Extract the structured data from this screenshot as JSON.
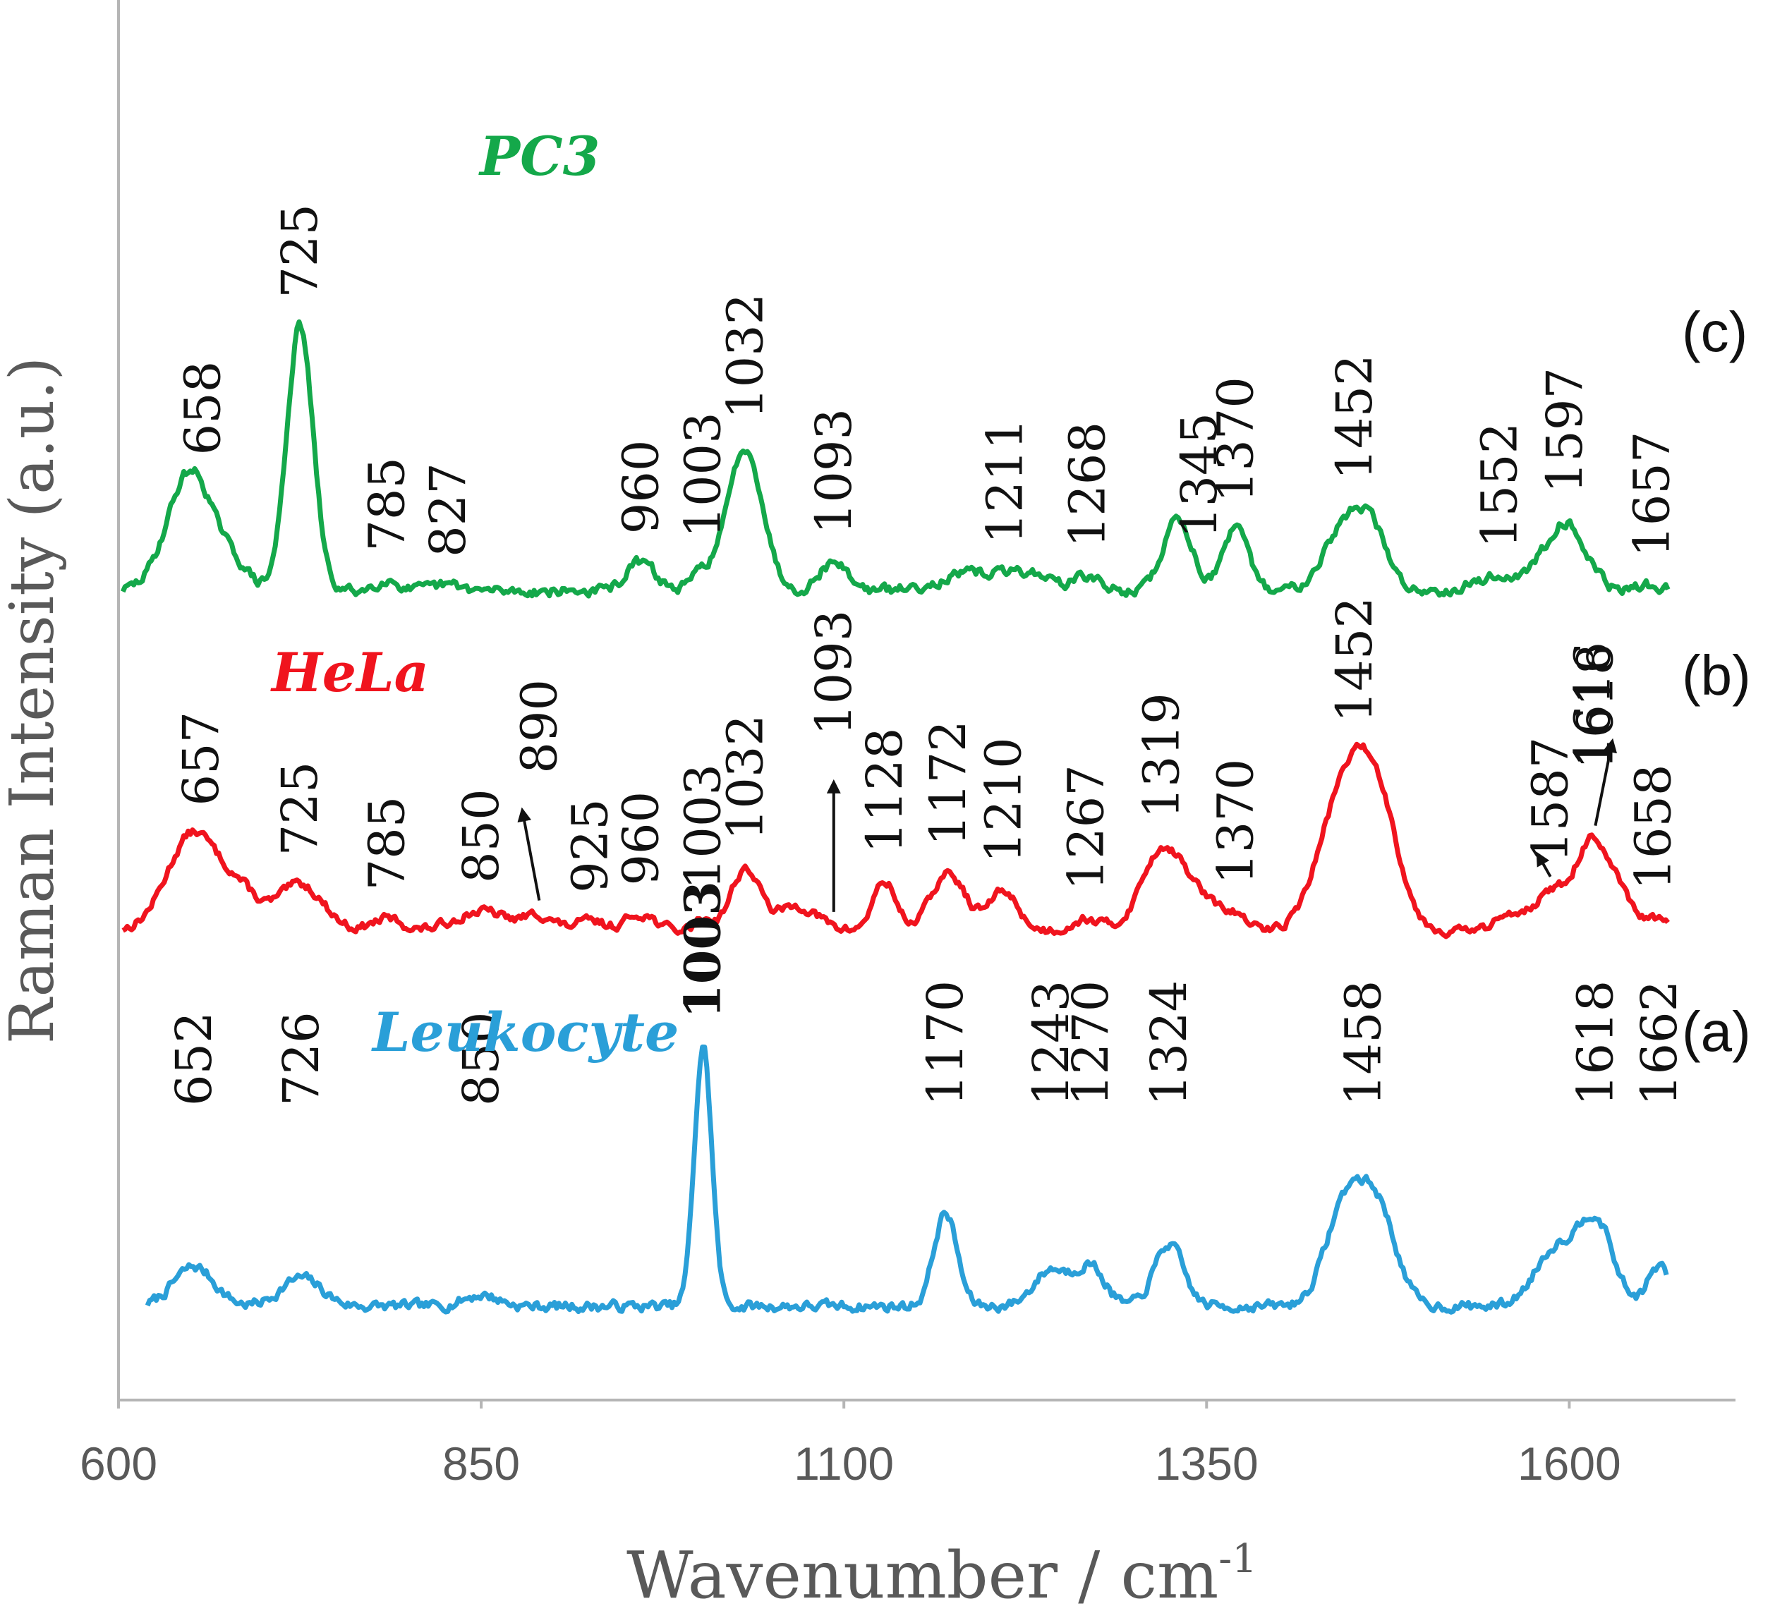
{
  "chart_data": {
    "type": "line",
    "title": "",
    "xlabel": "Wavenumber / cm",
    "xlabel_sup": "-1",
    "ylabel": "Raman Intensity (a.u.)",
    "xlim": [
      600,
      1700
    ],
    "xticks": [
      600,
      850,
      1100,
      1350,
      1600
    ],
    "series": [
      {
        "name": "Leukocyte",
        "tag": "(a)",
        "color": "#2A9FD8",
        "peaks": [
          {
            "x": 652,
            "h": 0.14,
            "w": 14
          },
          {
            "x": 726,
            "h": 0.1,
            "w": 14
          },
          {
            "x": 850,
            "h": 0.04,
            "w": 12
          },
          {
            "x": 1003,
            "h": 0.92,
            "w": 6
          },
          {
            "x": 1170,
            "h": 0.33,
            "w": 8
          },
          {
            "x": 1243,
            "h": 0.13,
            "w": 12
          },
          {
            "x": 1270,
            "h": 0.14,
            "w": 10
          },
          {
            "x": 1324,
            "h": 0.22,
            "w": 10
          },
          {
            "x": 1447,
            "h": 0.38,
            "w": 14
          },
          {
            "x": 1470,
            "h": 0.28,
            "w": 12
          },
          {
            "x": 1590,
            "h": 0.2,
            "w": 14
          },
          {
            "x": 1618,
            "h": 0.3,
            "w": 12
          },
          {
            "x": 1662,
            "h": 0.14,
            "w": 8
          }
        ],
        "labels": [
          {
            "text": "652",
            "x": 652
          },
          {
            "text": "726",
            "x": 726
          },
          {
            "text": "850",
            "x": 850
          },
          {
            "text": "1003",
            "x": 1003,
            "bold": true
          },
          {
            "text": "1170",
            "x": 1170
          },
          {
            "text": "1243",
            "x": 1243
          },
          {
            "text": "1270",
            "x": 1270
          },
          {
            "text": "1324",
            "x": 1324
          },
          {
            "text": "1458",
            "x": 1458
          },
          {
            "text": "1618",
            "x": 1618
          },
          {
            "text": "1662",
            "x": 1662
          }
        ]
      },
      {
        "name": "HeLa",
        "tag": "(b)",
        "color": "#F0141E",
        "peaks": [
          {
            "x": 652,
            "h": 0.4,
            "w": 18
          },
          {
            "x": 685,
            "h": 0.12,
            "w": 12
          },
          {
            "x": 725,
            "h": 0.19,
            "w": 16
          },
          {
            "x": 785,
            "h": 0.05,
            "w": 10
          },
          {
            "x": 850,
            "h": 0.08,
            "w": 18
          },
          {
            "x": 890,
            "h": 0.06,
            "w": 10
          },
          {
            "x": 925,
            "h": 0.04,
            "w": 10
          },
          {
            "x": 960,
            "h": 0.07,
            "w": 10
          },
          {
            "x": 1003,
            "h": 0.05,
            "w": 6
          },
          {
            "x": 1032,
            "h": 0.25,
            "w": 10
          },
          {
            "x": 1068,
            "h": 0.1,
            "w": 14
          },
          {
            "x": 1128,
            "h": 0.2,
            "w": 8
          },
          {
            "x": 1172,
            "h": 0.23,
            "w": 12
          },
          {
            "x": 1210,
            "h": 0.16,
            "w": 10
          },
          {
            "x": 1267,
            "h": 0.05,
            "w": 10
          },
          {
            "x": 1319,
            "h": 0.32,
            "w": 14
          },
          {
            "x": 1345,
            "h": 0.12,
            "w": 14
          },
          {
            "x": 1370,
            "h": 0.05,
            "w": 8
          },
          {
            "x": 1447,
            "h": 0.6,
            "w": 18
          },
          {
            "x": 1470,
            "h": 0.35,
            "w": 14
          },
          {
            "x": 1560,
            "h": 0.06,
            "w": 10
          },
          {
            "x": 1590,
            "h": 0.16,
            "w": 14
          },
          {
            "x": 1616,
            "h": 0.34,
            "w": 10
          },
          {
            "x": 1635,
            "h": 0.14,
            "w": 8
          },
          {
            "x": 1658,
            "h": 0.05,
            "w": 8
          }
        ],
        "labels": [
          {
            "text": "657",
            "x": 657
          },
          {
            "text": "725",
            "x": 725
          },
          {
            "text": "785",
            "x": 785
          },
          {
            "text": "850",
            "x": 850
          },
          {
            "text": "890",
            "x": 890
          },
          {
            "text": "925",
            "x": 925
          },
          {
            "text": "960",
            "x": 960
          },
          {
            "text": "1003",
            "x": 1003
          },
          {
            "text": "1032",
            "x": 1032
          },
          {
            "text": "1093",
            "x": 1093
          },
          {
            "text": "1128",
            "x": 1128
          },
          {
            "text": "1172",
            "x": 1172
          },
          {
            "text": "1210",
            "x": 1210
          },
          {
            "text": "1267",
            "x": 1267
          },
          {
            "text": "1319",
            "x": 1319
          },
          {
            "text": "1370",
            "x": 1370
          },
          {
            "text": "1452",
            "x": 1452
          },
          {
            "text": "1587",
            "x": 1587
          },
          {
            "text": "1616",
            "x": 1616
          },
          {
            "text": "1618",
            "x": 1618
          },
          {
            "text": "1658",
            "x": 1658
          }
        ]
      },
      {
        "name": "PC3",
        "tag": "(c)",
        "color": "#14A84A",
        "peaks": [
          {
            "x": 650,
            "h": 0.42,
            "w": 16
          },
          {
            "x": 682,
            "h": 0.06,
            "w": 10
          },
          {
            "x": 725,
            "h": 0.92,
            "w": 9
          },
          {
            "x": 785,
            "h": 0.04,
            "w": 8
          },
          {
            "x": 827,
            "h": 0.02,
            "w": 10
          },
          {
            "x": 960,
            "h": 0.1,
            "w": 10
          },
          {
            "x": 1003,
            "h": 0.06,
            "w": 8
          },
          {
            "x": 1032,
            "h": 0.5,
            "w": 12
          },
          {
            "x": 1093,
            "h": 0.1,
            "w": 10
          },
          {
            "x": 1190,
            "h": 0.06,
            "w": 24
          },
          {
            "x": 1230,
            "h": 0.05,
            "w": 16
          },
          {
            "x": 1268,
            "h": 0.05,
            "w": 8
          },
          {
            "x": 1330,
            "h": 0.25,
            "w": 10
          },
          {
            "x": 1370,
            "h": 0.21,
            "w": 9
          },
          {
            "x": 1442,
            "h": 0.18,
            "w": 14
          },
          {
            "x": 1462,
            "h": 0.21,
            "w": 12
          },
          {
            "x": 1552,
            "h": 0.05,
            "w": 18
          },
          {
            "x": 1597,
            "h": 0.24,
            "w": 14
          },
          {
            "x": 1657,
            "h": 0.02,
            "w": 8
          }
        ],
        "labels": [
          {
            "text": "658",
            "x": 658
          },
          {
            "text": "725",
            "x": 725
          },
          {
            "text": "785",
            "x": 785
          },
          {
            "text": "827",
            "x": 827
          },
          {
            "text": "960",
            "x": 960
          },
          {
            "text": "1003",
            "x": 1003
          },
          {
            "text": "1032",
            "x": 1032
          },
          {
            "text": "1093",
            "x": 1093
          },
          {
            "text": "1211",
            "x": 1211
          },
          {
            "text": "1268",
            "x": 1268
          },
          {
            "text": "1345",
            "x": 1345
          },
          {
            "text": "1370",
            "x": 1370
          },
          {
            "text": "1452",
            "x": 1452
          },
          {
            "text": "1552",
            "x": 1552
          },
          {
            "text": "1597",
            "x": 1597
          },
          {
            "text": "1657",
            "x": 1657
          }
        ]
      }
    ]
  }
}
